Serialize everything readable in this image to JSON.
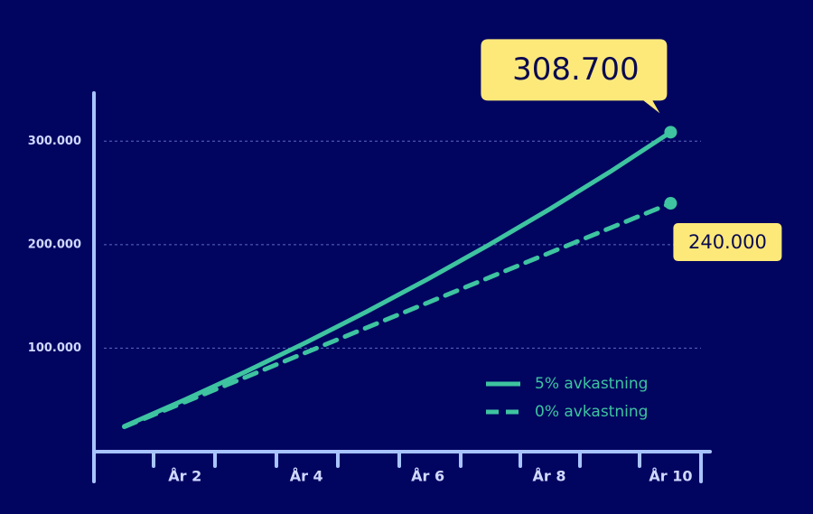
{
  "chart_data": {
    "type": "line",
    "x": [
      1,
      2,
      3,
      4,
      5,
      6,
      7,
      8,
      9,
      10
    ],
    "xlim": [
      0.5,
      10.5
    ],
    "xticks": [
      {
        "value": 2,
        "label": "År 2"
      },
      {
        "value": 4,
        "label": "År 4"
      },
      {
        "value": 6,
        "label": "År 6"
      },
      {
        "value": 8,
        "label": "År 8"
      },
      {
        "value": 10,
        "label": "År 10"
      }
    ],
    "ylim": [
      0,
      350000
    ],
    "yticks": [
      {
        "value": 100000,
        "label": "100.000"
      },
      {
        "value": 200000,
        "label": "200.000"
      },
      {
        "value": 300000,
        "label": "300.000"
      }
    ],
    "grid": true,
    "legend": "lower right",
    "series": [
      {
        "name": "5% avkastning",
        "color": "#3ec4a0",
        "style": "solid",
        "values": [
          24500,
          50300,
          77300,
          105700,
          135500,
          166800,
          199600,
          234100,
          270300,
          308700
        ],
        "value_labels": [
          null,
          null,
          null,
          null,
          null,
          null,
          null,
          null,
          null,
          "308.700"
        ]
      },
      {
        "name": "0% avkastning",
        "color": "#3ec4a0",
        "style": "dashed",
        "values": [
          24000,
          48000,
          72000,
          96000,
          120000,
          144000,
          168000,
          192000,
          216000,
          240000
        ],
        "value_labels": [
          null,
          null,
          null,
          null,
          null,
          null,
          null,
          null,
          null,
          "240.000"
        ]
      }
    ]
  }
}
